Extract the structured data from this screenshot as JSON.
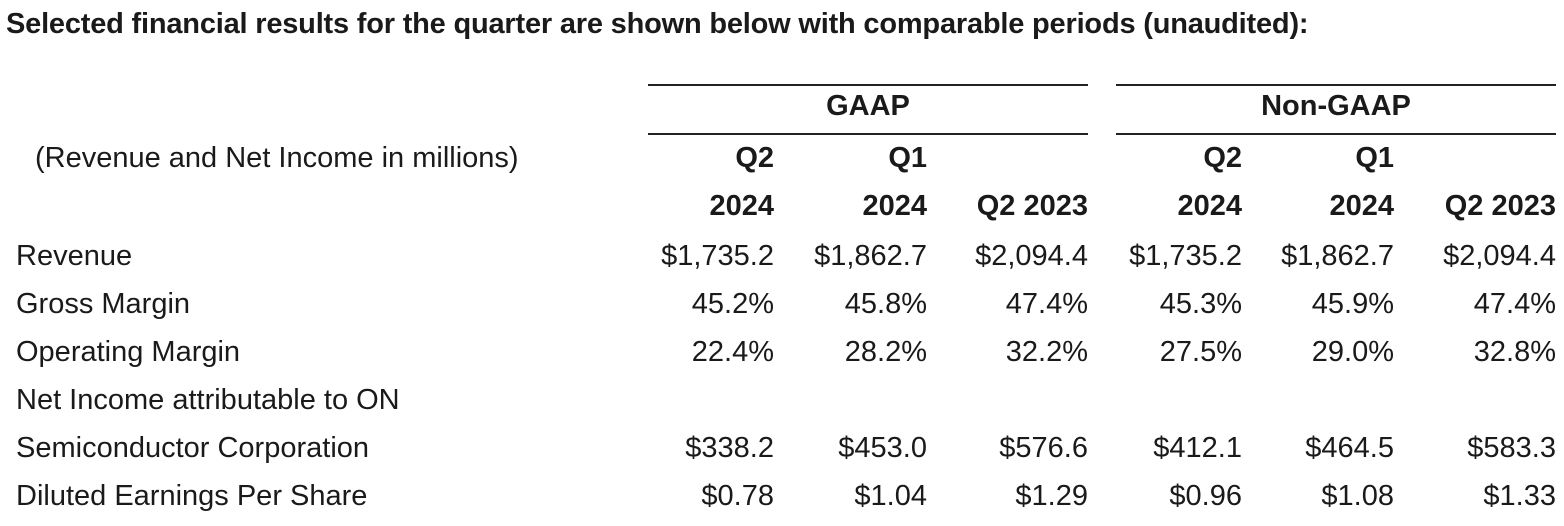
{
  "heading": "Selected financial results for the quarter are shown below with comparable periods (unaudited):",
  "units_note": "(Revenue and Net Income in millions)",
  "groups": [
    {
      "label": "GAAP",
      "columns": [
        {
          "line1": "Q2",
          "line2": "2024"
        },
        {
          "line1": "Q1",
          "line2": "2024"
        },
        {
          "line1": "",
          "line2": "Q2 2023"
        }
      ]
    },
    {
      "label": "Non-GAAP",
      "columns": [
        {
          "line1": "Q2",
          "line2": "2024"
        },
        {
          "line1": "Q1",
          "line2": "2024"
        },
        {
          "line1": "",
          "line2": "Q2 2023"
        }
      ]
    }
  ],
  "rows": [
    {
      "label": "Revenue",
      "values": [
        "$1,735.2",
        "$1,862.7",
        "$2,094.4",
        "$1,735.2",
        "$1,862.7",
        "$2,094.4"
      ]
    },
    {
      "label": "Gross Margin",
      "values": [
        "45.2%",
        "45.8%",
        "47.4%",
        "45.3%",
        "45.9%",
        "47.4%"
      ]
    },
    {
      "label": "Operating Margin",
      "values": [
        "22.4%",
        "28.2%",
        "32.2%",
        "27.5%",
        "29.0%",
        "32.8%"
      ]
    },
    {
      "label": "Net Income attributable to ON",
      "values": []
    },
    {
      "label": "Semiconductor Corporation",
      "values": [
        "$338.2",
        "$453.0",
        "$576.6",
        "$412.1",
        "$464.5",
        "$583.3"
      ]
    },
    {
      "label": "Diluted Earnings Per Share",
      "values": [
        "$0.78",
        "$1.04",
        "$1.29",
        "$0.96",
        "$1.08",
        "$1.33"
      ]
    }
  ]
}
